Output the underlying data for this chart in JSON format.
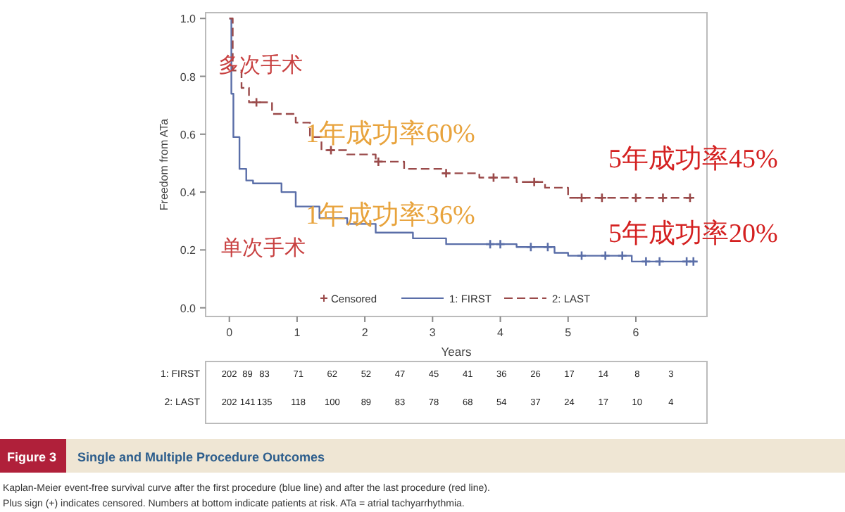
{
  "chart_data": {
    "type": "step",
    "title": "Single and Multiple Procedure Outcomes",
    "xlabel": "Years",
    "ylabel": "Freedom from ATa",
    "xlim": [
      -0.35,
      7.05
    ],
    "ylim": [
      -0.03,
      1.02
    ],
    "xticks": [
      0,
      1,
      2,
      3,
      4,
      5,
      6
    ],
    "yticks": [
      {
        "value": 0,
        "label": "0.0"
      },
      {
        "value": 0.2,
        "label": "0.2"
      },
      {
        "value": 0.4,
        "label": "0.4"
      },
      {
        "value": 0.6,
        "label": "0.6"
      },
      {
        "value": 0.8,
        "label": "0.8"
      },
      {
        "value": 1,
        "label": "1.0"
      }
    ],
    "legend": "bottom",
    "grid": false,
    "series": [
      {
        "name": "Censored",
        "type": "scatter",
        "marker": "cross",
        "x": [
          0.4,
          1.5,
          2.2,
          3.2,
          3.9,
          4.5,
          5.2,
          5.5,
          6.0,
          6.4,
          6.8,
          3.85,
          4.0,
          4.45,
          4.7,
          5.2,
          5.55,
          5.8,
          6.15,
          6.35,
          6.75,
          6.85
        ],
        "values": [
          0.71,
          0.545,
          0.505,
          0.465,
          0.45,
          0.435,
          0.38,
          0.38,
          0.38,
          0.38,
          0.38,
          0.22,
          0.22,
          0.21,
          0.21,
          0.18,
          0.18,
          0.18,
          0.16,
          0.16,
          0.16,
          0.16
        ],
        "colors": [
          "#9a4a4a",
          "#9a4a4a",
          "#9a4a4a",
          "#9a4a4a",
          "#9a4a4a",
          "#9a4a4a",
          "#9a4a4a",
          "#9a4a4a",
          "#9a4a4a",
          "#9a4a4a",
          "#9a4a4a",
          "#5a6ea8",
          "#5a6ea8",
          "#5a6ea8",
          "#5a6ea8",
          "#5a6ea8",
          "#5a6ea8",
          "#5a6ea8",
          "#5a6ea8",
          "#5a6ea8",
          "#5a6ea8",
          "#5a6ea8"
        ],
        "color": "#9a4a4a"
      },
      {
        "name": "1: FIRST",
        "color": "#5a6ea8",
        "line_style": "solid",
        "x": [
          0,
          0.03,
          0.06,
          0.15,
          0.25,
          0.35,
          0.77,
          0.98,
          1.33,
          1.74,
          2.16,
          2.71,
          3.2,
          4.24,
          4.8,
          5.0,
          5.94,
          6.88
        ],
        "values": [
          1.0,
          0.74,
          0.59,
          0.48,
          0.44,
          0.43,
          0.4,
          0.35,
          0.31,
          0.29,
          0.26,
          0.24,
          0.22,
          0.21,
          0.19,
          0.18,
          0.16,
          0.16
        ]
      },
      {
        "name": "2: LAST",
        "color": "#9a4a4a",
        "line_style": "dashed",
        "x": [
          0,
          0.05,
          0.18,
          0.29,
          0.63,
          0.98,
          1.19,
          1.36,
          1.74,
          2.16,
          2.58,
          3.13,
          3.69,
          4.24,
          4.66,
          5.0,
          6.88
        ],
        "values": [
          1.0,
          0.82,
          0.76,
          0.71,
          0.67,
          0.64,
          0.59,
          0.545,
          0.53,
          0.505,
          0.48,
          0.465,
          0.45,
          0.435,
          0.415,
          0.38,
          0.38
        ]
      }
    ],
    "annotations": [
      "多次手术",
      "1年成功率60%",
      "5年成功率45%",
      "1年成功率36%",
      "5年成功率20%",
      "单次手术",
      "1: FIRST",
      "202 89 83 71 62 52 47 45 41 36 26 17 14 8 3",
      "2: LAST",
      "202 141 135 118 100 89 83 78 68 54 37 24 17 10 4",
      "Figure 3",
      "Kaplan-Meier event-free survival curve after the first procedure (blue line) and after the last procedure (red line).",
      "Plus sign (+) indicates censored. Numbers at bottom indicate patients at risk. ATa = atrial tachyarrhythmia."
    ]
  }
}
